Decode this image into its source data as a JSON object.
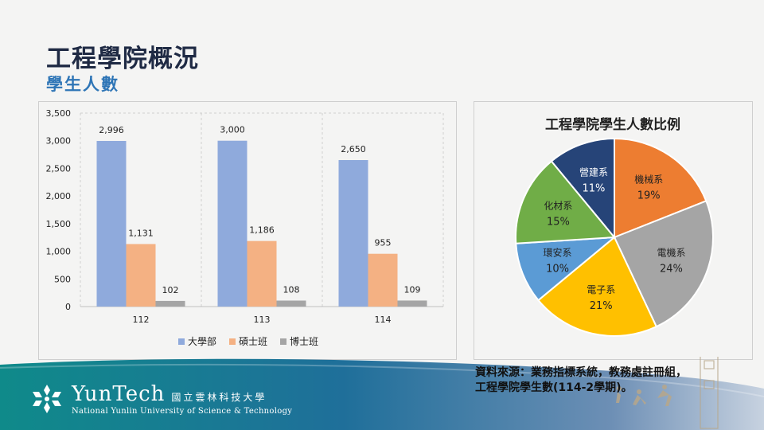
{
  "header": {
    "title": "工程學院概況",
    "subtitle": "學生人數"
  },
  "chart_data": [
    {
      "type": "bar",
      "categories": [
        "112",
        "113",
        "114"
      ],
      "series": [
        {
          "name": "大學部",
          "values": [
            2996,
            3000,
            2650
          ],
          "labels": [
            "2,996",
            "3,000",
            "2,650"
          ],
          "color": "#8faadc"
        },
        {
          "name": "碩士班",
          "values": [
            1131,
            1186,
            955
          ],
          "labels": [
            "1,131",
            "1,186",
            "955"
          ],
          "color": "#f4b183"
        },
        {
          "name": "博士班",
          "values": [
            102,
            108,
            109
          ],
          "labels": [
            "102",
            "108",
            "109"
          ],
          "color": "#a5a5a5"
        }
      ],
      "ylim": [
        0,
        3500
      ],
      "yticks": [
        0,
        500,
        1000,
        1500,
        2000,
        2500,
        3000,
        3500
      ],
      "ytick_labels": [
        "0",
        "500",
        "1,000",
        "1,500",
        "2,000",
        "2,500",
        "3,000",
        "3,500"
      ],
      "grid": true,
      "legend": "bottom"
    },
    {
      "type": "pie",
      "title": "工程學院學生人數比例",
      "slices": [
        {
          "label": "機械系",
          "value": 19,
          "text": "19%",
          "color": "#ed7d31"
        },
        {
          "label": "電機系",
          "value": 24,
          "text": "24%",
          "color": "#a5a5a5"
        },
        {
          "label": "電子系",
          "value": 21,
          "text": "21%",
          "color": "#ffc000"
        },
        {
          "label": "環安系",
          "value": 10,
          "text": "10%",
          "color": "#5b9bd5"
        },
        {
          "label": "化材系",
          "value": 15,
          "text": "15%",
          "color": "#70ad47"
        },
        {
          "label": "營建系",
          "value": 11,
          "text": "11%",
          "color": "#264478"
        }
      ]
    }
  ],
  "source": {
    "line1": "資料來源：業務指標系統，教務處註冊組，",
    "line2": "工程學院學生數(114-2學期)。"
  },
  "logo": {
    "name": "YunTech",
    "cn": "國立雲林科技大學",
    "en": "National Yunlin University of Science & Technology"
  }
}
